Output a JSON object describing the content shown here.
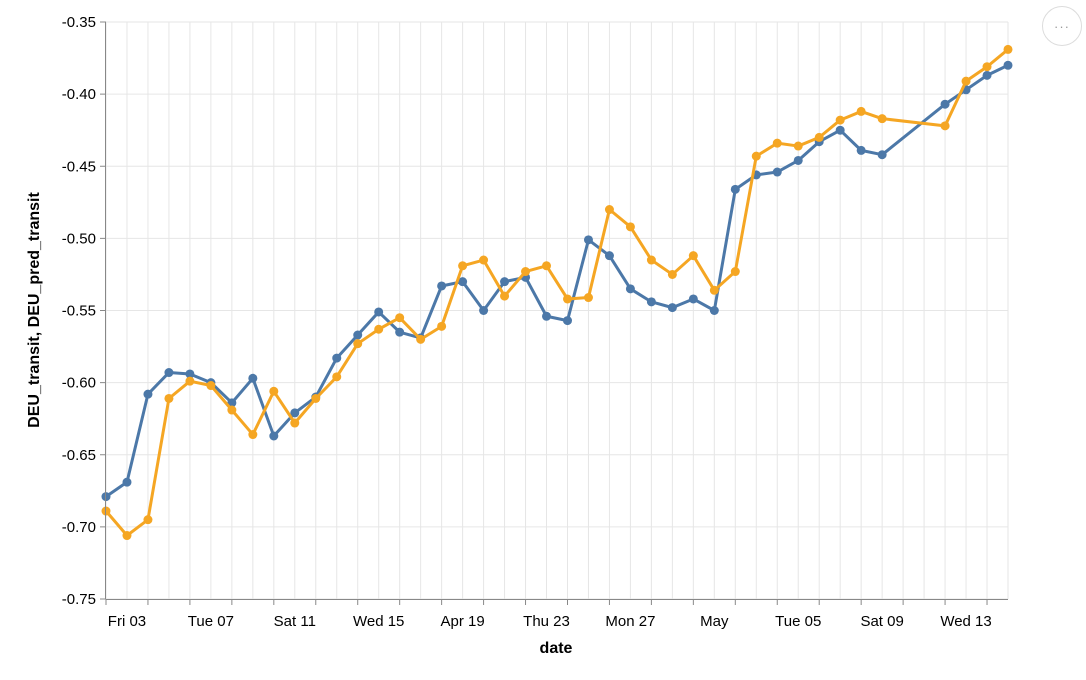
{
  "chart_data": {
    "type": "line",
    "xlabel": "date",
    "ylabel": "DEU_transit, DEU_pred_transit",
    "ylim": [
      -0.75,
      -0.35
    ],
    "yticks": [
      "-0.35",
      "-0.40",
      "-0.45",
      "-0.50",
      "-0.55",
      "-0.60",
      "-0.65",
      "-0.70",
      "-0.75"
    ],
    "ytick_values": [
      -0.35,
      -0.4,
      -0.45,
      -0.5,
      -0.55,
      -0.6,
      -0.65,
      -0.7,
      -0.75
    ],
    "xlim": [
      0,
      43
    ],
    "x": [
      0,
      1,
      2,
      3,
      4,
      5,
      6,
      7,
      8,
      9,
      10,
      11,
      12,
      13,
      14,
      15,
      16,
      17,
      18,
      19,
      20,
      21,
      22,
      23,
      24,
      25,
      26,
      27,
      28,
      29,
      30,
      31,
      32,
      33,
      34,
      35,
      36,
      37,
      38,
      39,
      40,
      41,
      42
    ],
    "xticks": [
      {
        "label": "Fri 03",
        "pos": 1
      },
      {
        "label": "Tue 07",
        "pos": 5
      },
      {
        "label": "Sat 11",
        "pos": 9
      },
      {
        "label": "Wed 15",
        "pos": 13
      },
      {
        "label": "Apr 19",
        "pos": 17
      },
      {
        "label": "Thu 23",
        "pos": 21
      },
      {
        "label": "Mon 27",
        "pos": 25
      },
      {
        "label": "May",
        "pos": 29
      },
      {
        "label": "Tue 05",
        "pos": 33
      },
      {
        "label": "Sat 09",
        "pos": 37
      },
      {
        "label": "Wed 13",
        "pos": 41
      }
    ],
    "grid": true,
    "series": [
      {
        "name": "DEU_transit",
        "color": "#4c78a8",
        "points": [
          [
            0,
            -0.679
          ],
          [
            1,
            -0.669
          ],
          [
            2,
            -0.608
          ],
          [
            3,
            -0.593
          ],
          [
            4,
            -0.594
          ],
          [
            5,
            -0.6
          ],
          [
            6,
            -0.614
          ],
          [
            7,
            -0.597
          ],
          [
            8,
            -0.637
          ],
          [
            9,
            -0.621
          ],
          [
            10,
            -0.61
          ],
          [
            11,
            -0.583
          ],
          [
            12,
            -0.567
          ],
          [
            13,
            -0.551
          ],
          [
            14,
            -0.565
          ],
          [
            15,
            -0.569
          ],
          [
            16,
            -0.533
          ],
          [
            17,
            -0.53
          ],
          [
            18,
            -0.55
          ],
          [
            19,
            -0.53
          ],
          [
            20,
            -0.527
          ],
          [
            21,
            -0.554
          ],
          [
            22,
            -0.557
          ],
          [
            23,
            -0.501
          ],
          [
            24,
            -0.512
          ],
          [
            25,
            -0.535
          ],
          [
            26,
            -0.544
          ],
          [
            27,
            -0.548
          ],
          [
            28,
            -0.542
          ],
          [
            29,
            -0.55
          ],
          [
            30,
            -0.466
          ],
          [
            31,
            -0.456
          ],
          [
            32,
            -0.454
          ],
          [
            33,
            -0.446
          ],
          [
            34,
            -0.433
          ],
          [
            35,
            -0.425
          ],
          [
            36,
            -0.439
          ],
          [
            37,
            -0.442
          ],
          [
            40,
            -0.407
          ],
          [
            41,
            -0.397
          ],
          [
            42,
            -0.387
          ],
          [
            43,
            -0.38
          ]
        ]
      },
      {
        "name": "DEU_pred_transit",
        "color": "#f5a623",
        "points": [
          [
            0,
            -0.689
          ],
          [
            1,
            -0.706
          ],
          [
            2,
            -0.695
          ],
          [
            3,
            -0.611
          ],
          [
            4,
            -0.599
          ],
          [
            5,
            -0.602
          ],
          [
            6,
            -0.619
          ],
          [
            7,
            -0.636
          ],
          [
            8,
            -0.606
          ],
          [
            9,
            -0.628
          ],
          [
            10,
            -0.611
          ],
          [
            11,
            -0.596
          ],
          [
            12,
            -0.573
          ],
          [
            13,
            -0.563
          ],
          [
            14,
            -0.555
          ],
          [
            15,
            -0.57
          ],
          [
            16,
            -0.561
          ],
          [
            17,
            -0.519
          ],
          [
            18,
            -0.515
          ],
          [
            19,
            -0.54
          ],
          [
            20,
            -0.523
          ],
          [
            21,
            -0.519
          ],
          [
            22,
            -0.542
          ],
          [
            23,
            -0.541
          ],
          [
            24,
            -0.48
          ],
          [
            25,
            -0.492
          ],
          [
            26,
            -0.515
          ],
          [
            27,
            -0.525
          ],
          [
            28,
            -0.512
          ],
          [
            29,
            -0.536
          ],
          [
            30,
            -0.523
          ],
          [
            31,
            -0.443
          ],
          [
            32,
            -0.434
          ],
          [
            33,
            -0.436
          ],
          [
            34,
            -0.43
          ],
          [
            35,
            -0.418
          ],
          [
            36,
            -0.412
          ],
          [
            37,
            -0.417
          ],
          [
            40,
            -0.422
          ],
          [
            41,
            -0.391
          ],
          [
            42,
            -0.381
          ],
          [
            43,
            -0.369
          ]
        ]
      }
    ]
  },
  "menu": {
    "label": "···"
  }
}
